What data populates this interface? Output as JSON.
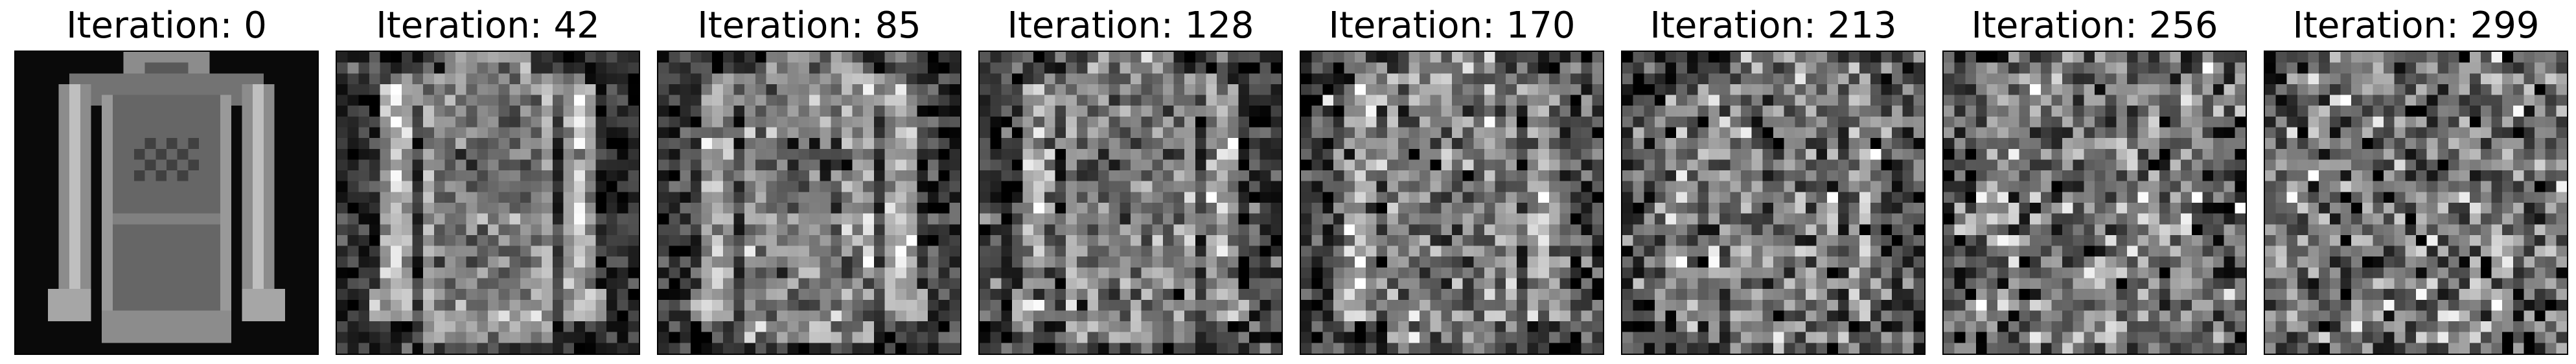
{
  "figure": {
    "panels": [
      {
        "title": "Iteration: 0",
        "iteration": 0,
        "noise_level": 0.0
      },
      {
        "title": "Iteration: 42",
        "iteration": 42,
        "noise_level": 0.55
      },
      {
        "title": "Iteration: 85",
        "iteration": 85,
        "noise_level": 0.68
      },
      {
        "title": "Iteration: 128",
        "iteration": 128,
        "noise_level": 0.78
      },
      {
        "title": "Iteration: 170",
        "iteration": 170,
        "noise_level": 0.85
      },
      {
        "title": "Iteration: 213",
        "iteration": 213,
        "noise_level": 0.91
      },
      {
        "title": "Iteration: 256",
        "iteration": 256,
        "noise_level": 0.96
      },
      {
        "title": "Iteration: 299",
        "iteration": 299,
        "noise_level": 1.0
      }
    ],
    "colormap": "gray",
    "frame_color": "#000000"
  }
}
